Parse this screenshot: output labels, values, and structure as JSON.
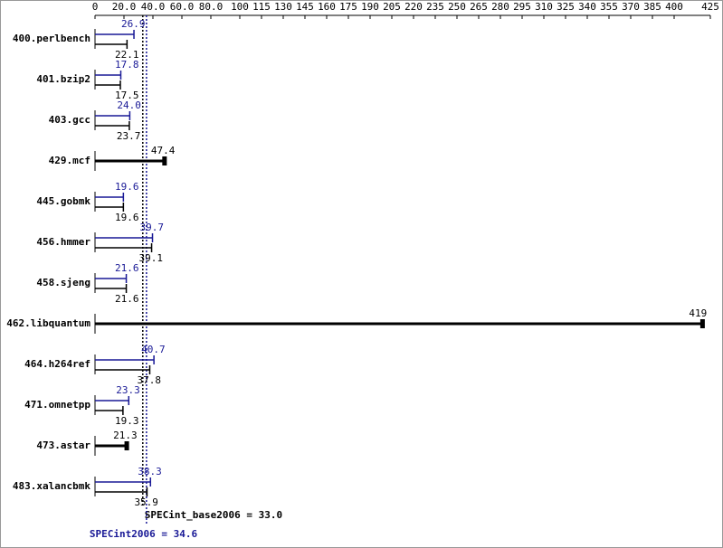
{
  "chart_data": {
    "type": "bar",
    "categories": [
      "400.perlbench",
      "401.bzip2",
      "403.gcc",
      "429.mcf",
      "445.gobmk",
      "456.hmmer",
      "458.sjeng",
      "462.libquantum",
      "464.h264ref",
      "471.omnetpp",
      "473.astar",
      "483.xalancbmk"
    ],
    "series": [
      {
        "color": "#191996",
        "values": [
          26.9,
          17.8,
          24.0,
          null,
          19.6,
          39.7,
          21.6,
          null,
          40.7,
          23.3,
          null,
          38.3
        ],
        "value_labels": [
          "26.9",
          "17.8",
          "24.0",
          null,
          "19.6",
          "39.7",
          "21.6",
          null,
          "40.7",
          "23.3",
          null,
          "38.3"
        ]
      },
      {
        "color": "#000000",
        "values": [
          22.1,
          17.5,
          23.7,
          47.4,
          19.6,
          39.1,
          21.6,
          419,
          37.8,
          19.3,
          21.3,
          35.9
        ],
        "value_labels": [
          "22.1",
          "17.5",
          "23.7",
          "47.4",
          "19.6",
          "39.1",
          "21.6",
          "419",
          "37.8",
          "19.3",
          "21.3",
          "35.9"
        ]
      }
    ],
    "xlim": [
      0,
      425
    ],
    "xticks": [
      0,
      {
        "value": 20,
        "label": "20.0"
      },
      {
        "value": 40,
        "label": "40.0"
      },
      {
        "value": 60,
        "label": "60.0"
      },
      {
        "value": 80,
        "label": "80.0"
      },
      100,
      115,
      130,
      145,
      160,
      175,
      190,
      205,
      220,
      235,
      250,
      265,
      280,
      295,
      310,
      325,
      340,
      355,
      370,
      385,
      400,
      425
    ],
    "reference_lines": [
      {
        "label": "SPECint_base2006 = 33.0",
        "value": 33.0,
        "color": "#000000"
      },
      {
        "label": "SPECint2006 = 34.6",
        "value": 34.6,
        "color": "#191996"
      }
    ]
  }
}
